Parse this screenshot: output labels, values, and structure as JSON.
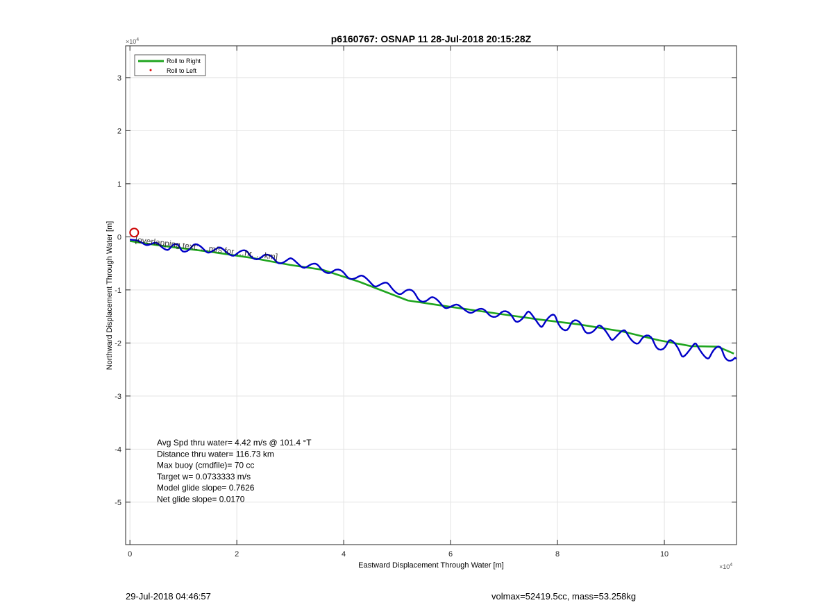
{
  "chart_data": {
    "type": "line",
    "title": "p6160767: OSNAP 11 28-Jul-2018 20:15:28Z",
    "xlabel": "Eastward Displacement Through Water [m]",
    "ylabel": "Northward Displacement Through Water [m]",
    "x_exponent_label": "×10",
    "x_exponent": "4",
    "y_exponent_label": "×10",
    "y_exponent": "4",
    "xlim": [
      -0.08,
      11.35
    ],
    "ylim": [
      -5.8,
      3.6
    ],
    "scale": 10000,
    "x_ticks": [
      0,
      2,
      4,
      6,
      8,
      10
    ],
    "x_tick_labels": [
      "0",
      "2",
      "4",
      "6",
      "8",
      "10"
    ],
    "y_ticks": [
      3,
      2,
      1,
      0,
      -1,
      -2,
      -3,
      -4,
      -5
    ],
    "y_tick_labels": [
      "3",
      "2",
      "1",
      "0",
      "-1",
      "-2",
      "-3",
      "-4",
      "-5"
    ],
    "grid": true,
    "legend_position": "top-left",
    "series": [
      {
        "name": "Roll to Right",
        "color": "#1fa51f",
        "x": [
          0,
          0.6,
          1.5,
          2.3,
          3.0,
          3.6,
          4.3,
          5.2,
          6.0,
          6.9,
          7.6,
          8.4,
          9.2,
          9.9,
          10.5,
          11.0,
          11.3
        ],
        "y": [
          -0.08,
          -0.17,
          -0.28,
          -0.4,
          -0.53,
          -0.62,
          -0.85,
          -1.2,
          -1.32,
          -1.45,
          -1.55,
          -1.65,
          -1.78,
          -1.95,
          -2.06,
          -2.07,
          -2.2
        ]
      },
      {
        "name": "Roll to Left",
        "color": "#dd0000",
        "marker": "dot",
        "x": [],
        "y": []
      }
    ],
    "track": {
      "color": "#0000c8",
      "x": [
        0,
        0.35,
        0.7,
        1.0,
        1.4,
        1.8,
        2.2,
        2.6,
        3.0,
        3.4,
        3.8,
        4.2,
        4.6,
        5.0,
        5.4,
        5.8,
        6.2,
        6.6,
        7.0,
        7.4,
        7.8,
        8.2,
        8.6,
        9.0,
        9.4,
        9.8,
        10.2,
        10.6,
        11.0,
        11.35
      ],
      "y": [
        -0.05,
        -0.13,
        -0.2,
        -0.2,
        -0.22,
        -0.28,
        -0.33,
        -0.4,
        -0.47,
        -0.55,
        -0.65,
        -0.75,
        -0.87,
        -1.0,
        -1.12,
        -1.25,
        -1.35,
        -1.42,
        -1.47,
        -1.52,
        -1.58,
        -1.65,
        -1.73,
        -1.82,
        -1.9,
        -1.98,
        -2.1,
        -2.15,
        -2.18,
        -2.3
      ],
      "amplitude": [
        0,
        0.04,
        0.05,
        0.08,
        0.07,
        0.06,
        0.07,
        0.06,
        0.07,
        0.06,
        0.06,
        0.06,
        0.07,
        0.07,
        0.08,
        0.07,
        0.05,
        0.06,
        0.07,
        0.12,
        0.14,
        0.12,
        0.09,
        0.12,
        0.1,
        0.1,
        0.14,
        0.14,
        0.12,
        0.06
      ]
    },
    "start_marker": {
      "x": 0.08,
      "y": 0.08,
      "color": "#cc0000"
    },
    "track_label": "[overlapping text: …m/s for …hr, …km]",
    "annotations": [
      "Avg Spd thru water=  4.42 m/s @ 101.4 °T",
      "Distance thru water= 116.73 km",
      "Max buoy (cmdfile)= 70 cc",
      "Target w= 0.0733333 m/s",
      "Model glide slope= 0.7626",
      "Net glide slope= 0.0170"
    ]
  },
  "footer": {
    "left": "29-Jul-2018 04:46:57",
    "right": "volmax=52419.5cc, mass=53.258kg"
  }
}
